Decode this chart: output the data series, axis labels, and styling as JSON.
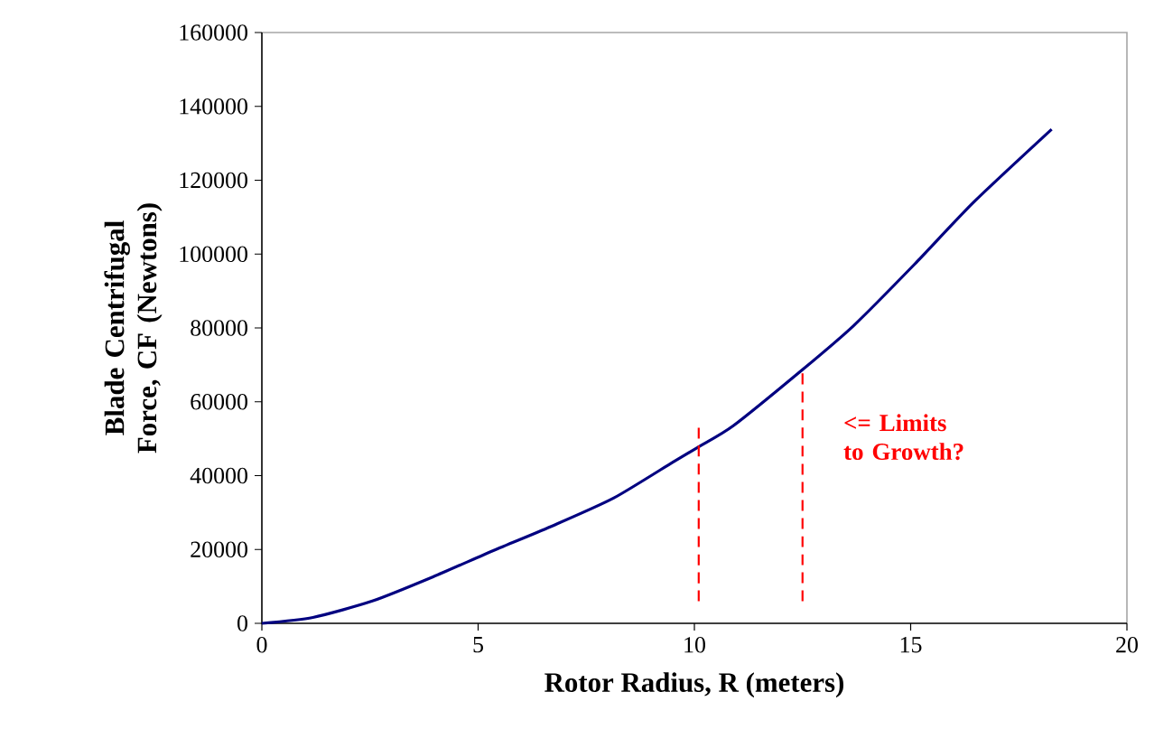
{
  "chart_data": {
    "type": "line",
    "xlabel": "Rotor Radius, R (meters)",
    "ylabel": "Blade Centrifugal Force, CF (Newtons)",
    "xlim": [
      0,
      20
    ],
    "xticks": [
      0,
      5,
      10,
      15,
      20
    ],
    "ylim": [
      0,
      160000
    ],
    "yticks": [
      0,
      20000,
      40000,
      60000,
      80000,
      100000,
      120000,
      140000,
      160000
    ],
    "marker": "none",
    "series": [
      {
        "color": "#000080",
        "line_style": "solid",
        "x": [
          0,
          1.18,
          2.57,
          3.96,
          5.35,
          6.74,
          8.13,
          9.51,
          10.1,
          10.9,
          12.51,
          13.68,
          15.07,
          16.46,
          18.26
        ],
        "values": [
          0,
          1600,
          6100,
          12600,
          19700,
          26500,
          33900,
          43700,
          47800,
          53500,
          68800,
          80600,
          97000,
          114100,
          133800
        ]
      },
      {
        "color": "#ff0000",
        "line_style": "dashed",
        "x": [
          10.1,
          10.1
        ],
        "values": [
          6000,
          53000
        ]
      },
      {
        "color": "#ff0000",
        "line_style": "dashed",
        "x": [
          12.5,
          12.5
        ],
        "values": [
          6000,
          68800
        ]
      }
    ],
    "annotations": [
      "<= Limits to Growth?"
    ]
  }
}
